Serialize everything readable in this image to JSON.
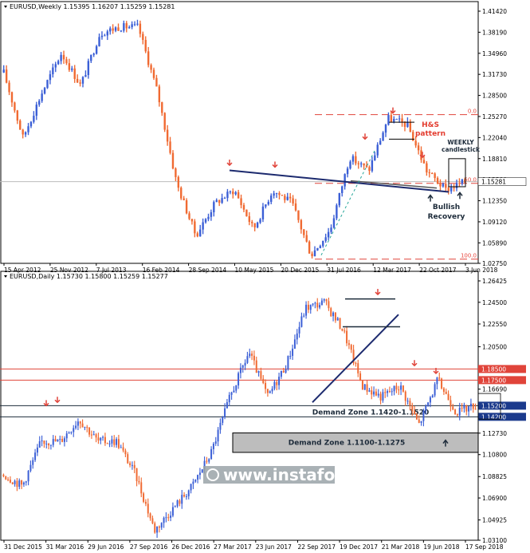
{
  "brand": {
    "watermark": "www.instaforex.com"
  },
  "colors": {
    "bull": "#3b5fd6",
    "bear": "#f06a32",
    "trend": "#1c2a6e",
    "level_red": "#e0443a",
    "zone_fill": "#bdbdbd",
    "tag_bg": "#1b3a8c"
  },
  "chart_data": [
    {
      "type": "candlestick",
      "header": "EURUSD,Weekly  1.15395 1.16207 1.15259 1.15281",
      "x_ticks": [
        "15 Apr 2012",
        "25 Nov 2012",
        "7 Jul 2013",
        "16 Feb 2014",
        "28 Sep 2014",
        "10 May 2015",
        "20 Dec 2015",
        "31 Jul 2016",
        "12 Mar 2017",
        "22 Oct 2017",
        "3 Jun 2018"
      ],
      "y_ticks": [
        "1.41420",
        "1.38190",
        "1.34960",
        "1.31730",
        "1.28500",
        "1.25270",
        "1.22040",
        "1.18810",
        "1.15580",
        "1.12350",
        "1.09120",
        "1.05890",
        "1.02750"
      ],
      "ylim": [
        1.0275,
        1.4142
      ],
      "last_price": "1.15281",
      "fib_levels": [
        {
          "label": "0.0",
          "value": 1.2555
        },
        {
          "label": "50.0",
          "value": 1.1502
        },
        {
          "label": "100.0",
          "value": 1.034
        }
      ],
      "annotations": {
        "hs_pattern": "H&S\npattern",
        "weekly_candle": "WEEKLY\ncandlestick",
        "bullish_recovery": "Bullish\nRecovery"
      },
      "series": [
        {
          "x": "2012-04",
          "y": 1.32
        },
        {
          "x": "2012-07",
          "y": 1.22
        },
        {
          "x": "2012-11",
          "y": 1.29
        },
        {
          "x": "2013-02",
          "y": 1.35
        },
        {
          "x": "2013-07",
          "y": 1.3
        },
        {
          "x": "2013-12",
          "y": 1.38
        },
        {
          "x": "2014-03",
          "y": 1.39
        },
        {
          "x": "2014-05",
          "y": 1.39
        },
        {
          "x": "2014-09",
          "y": 1.29
        },
        {
          "x": "2015-01",
          "y": 1.15
        },
        {
          "x": "2015-03",
          "y": 1.07
        },
        {
          "x": "2015-05",
          "y": 1.12
        },
        {
          "x": "2015-08",
          "y": 1.14
        },
        {
          "x": "2015-12",
          "y": 1.08
        },
        {
          "x": "2016-05",
          "y": 1.14
        },
        {
          "x": "2016-09",
          "y": 1.12
        },
        {
          "x": "2016-12",
          "y": 1.04
        },
        {
          "x": "2017-04",
          "y": 1.08
        },
        {
          "x": "2017-08",
          "y": 1.19
        },
        {
          "x": "2017-11",
          "y": 1.17
        },
        {
          "x": "2018-02",
          "y": 1.25
        },
        {
          "x": "2018-04",
          "y": 1.24
        },
        {
          "x": "2018-07",
          "y": 1.17
        },
        {
          "x": "2018-08",
          "y": 1.14
        },
        {
          "x": "2018-10",
          "y": 1.153
        }
      ]
    },
    {
      "type": "candlestick",
      "header": "EURUSD,Daily  1.15730 1.15800 1.15259 1.15277",
      "x_ticks": [
        "31 Dec 2015",
        "31 Mar 2016",
        "29 Jun 2016",
        "27 Sep 2016",
        "26 Dec 2016",
        "27 Mar 2017",
        "23 Jun 2017",
        "22 Sep 2017",
        "19 Dec 2017",
        "21 Mar 2018",
        "19 Jun 2018",
        "17 Sep 2018"
      ],
      "y_ticks": [
        "1.26425",
        "1.24500",
        "1.22550",
        "1.20500",
        "1.18500",
        "1.17500",
        "1.16690",
        "1.15200",
        "1.14200",
        "1.12730",
        "1.10800",
        "1.08825",
        "1.06900",
        "1.04925",
        "1.03100"
      ],
      "ylim": [
        1.031,
        1.26425
      ],
      "levels": [
        {
          "label": "1.18500",
          "value": 1.185,
          "style": "red"
        },
        {
          "label": "1.17500",
          "value": 1.175,
          "style": "red"
        },
        {
          "label": "1.15200",
          "value": 1.152,
          "style": "dark"
        },
        {
          "label": "1.14200",
          "value": 1.142,
          "style": "dark"
        }
      ],
      "zones": [
        {
          "label": "Demand Zone 1.1420-1.1520",
          "from": 1.142,
          "to": 1.152
        },
        {
          "label": "Demand Zone 1.1100-1.1275",
          "from": 1.11,
          "to": 1.1275
        }
      ],
      "series": [
        {
          "x": "2015-12",
          "y": 1.09
        },
        {
          "x": "2016-01",
          "y": 1.08
        },
        {
          "x": "2016-02",
          "y": 1.12
        },
        {
          "x": "2016-03",
          "y": 1.12
        },
        {
          "x": "2016-05",
          "y": 1.14
        },
        {
          "x": "2016-06",
          "y": 1.12
        },
        {
          "x": "2016-08",
          "y": 1.12
        },
        {
          "x": "2016-10",
          "y": 1.09
        },
        {
          "x": "2016-12",
          "y": 1.04
        },
        {
          "x": "2017-01",
          "y": 1.06
        },
        {
          "x": "2017-03",
          "y": 1.08
        },
        {
          "x": "2017-05",
          "y": 1.11
        },
        {
          "x": "2017-07",
          "y": 1.16
        },
        {
          "x": "2017-08",
          "y": 1.2
        },
        {
          "x": "2017-10",
          "y": 1.16
        },
        {
          "x": "2017-12",
          "y": 1.19
        },
        {
          "x": "2018-01",
          "y": 1.24
        },
        {
          "x": "2018-02",
          "y": 1.245
        },
        {
          "x": "2018-04",
          "y": 1.22
        },
        {
          "x": "2018-05",
          "y": 1.17
        },
        {
          "x": "2018-06",
          "y": 1.16
        },
        {
          "x": "2018-07",
          "y": 1.17
        },
        {
          "x": "2018-08",
          "y": 1.135
        },
        {
          "x": "2018-09",
          "y": 1.175
        },
        {
          "x": "2018-10",
          "y": 1.146
        },
        {
          "x": "2018-10b",
          "y": 1.153
        }
      ]
    }
  ]
}
